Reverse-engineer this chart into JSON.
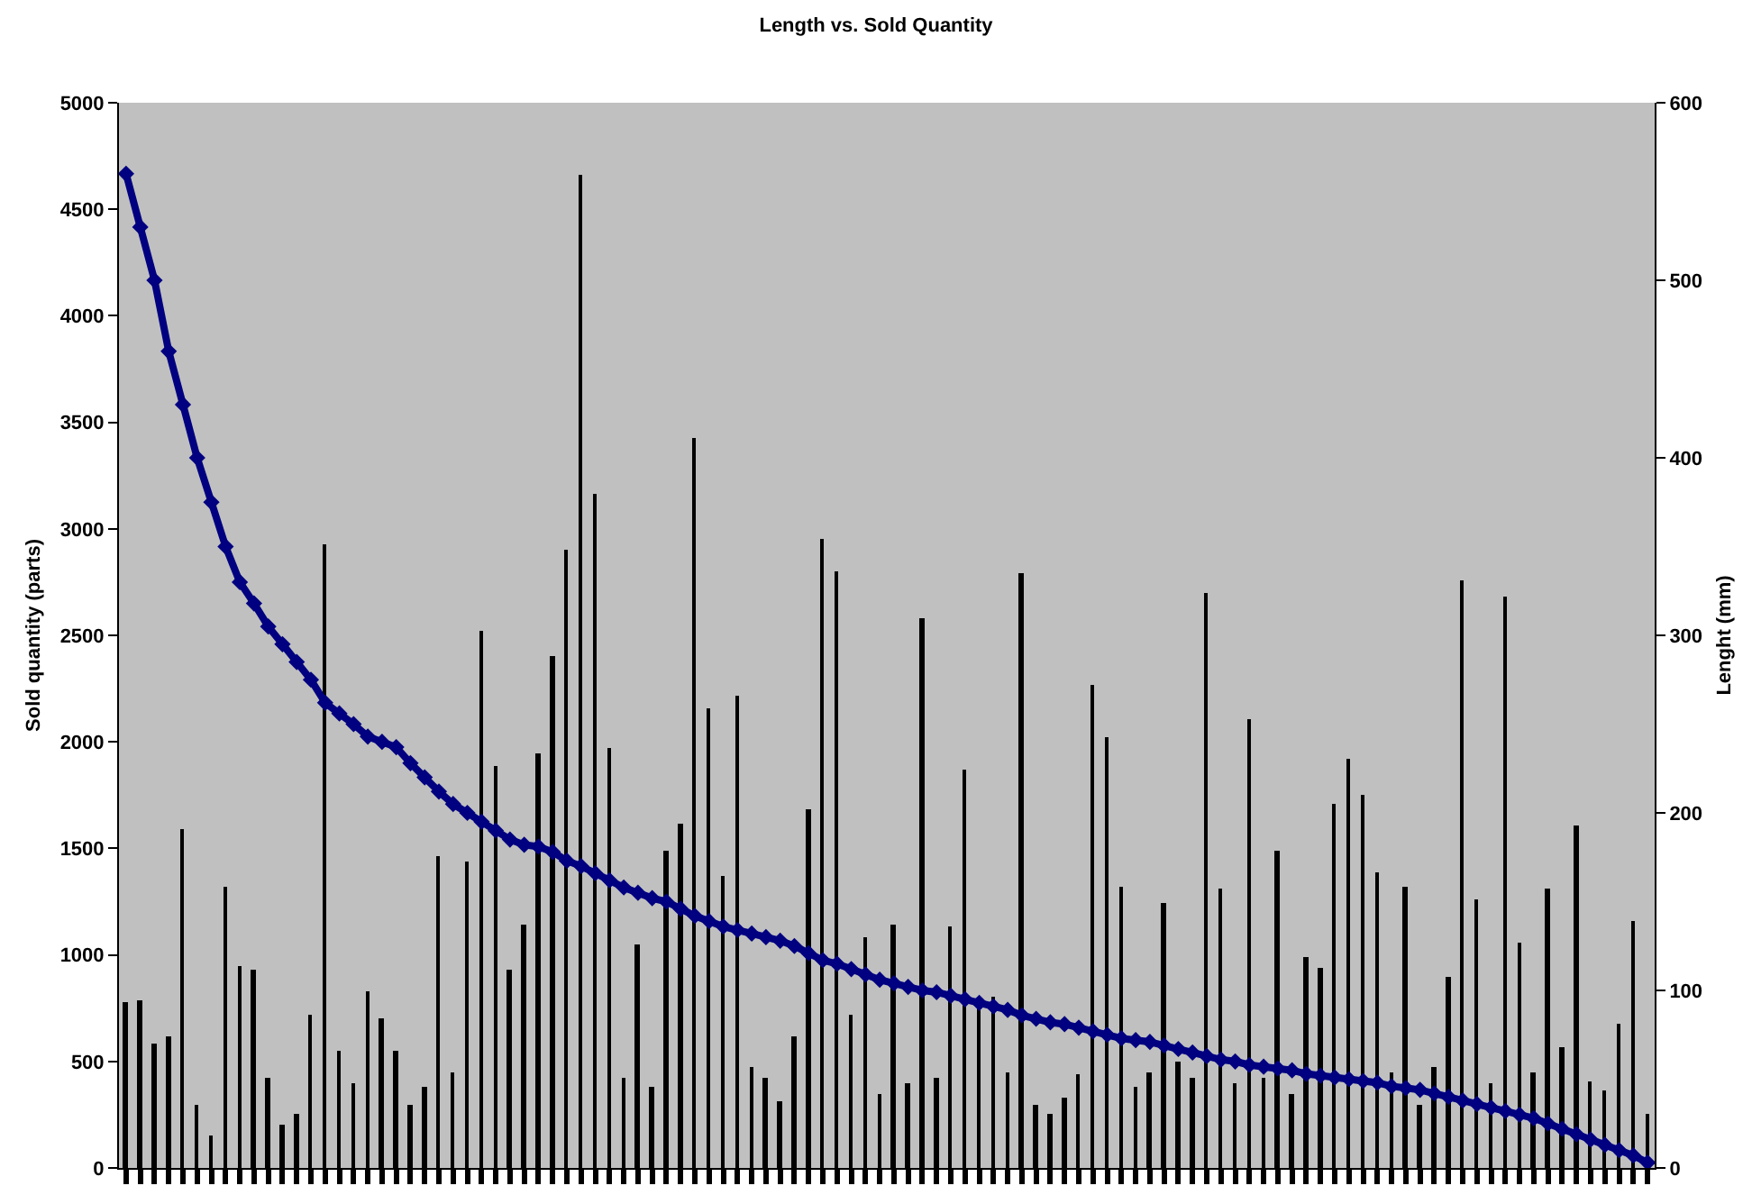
{
  "chart_data": {
    "type": "bar",
    "title": "Length vs. Sold Quantity",
    "ylabel": "Sold quantity (parts)",
    "y2label": "Lenght (mm)",
    "categories": [
      null,
      null,
      null,
      null,
      null,
      null,
      null,
      null,
      null,
      null,
      null,
      null,
      null,
      null,
      null,
      null,
      null,
      null,
      null,
      null,
      null,
      null,
      null,
      null,
      null,
      null,
      null,
      null,
      null,
      null,
      null,
      null,
      null,
      null,
      null,
      null,
      null,
      null,
      null,
      null,
      null,
      null,
      null,
      null,
      null,
      null,
      null,
      null,
      null,
      null,
      null,
      null,
      null,
      null,
      null,
      null,
      null,
      null,
      null,
      null,
      null,
      null,
      null,
      null,
      null,
      null,
      null,
      null,
      null,
      null,
      null,
      null,
      null,
      null,
      null,
      null,
      null,
      null,
      null,
      null,
      null,
      null,
      null,
      null,
      null,
      null,
      null,
      null,
      null,
      null,
      null,
      null,
      null,
      null,
      null,
      null,
      null,
      null,
      null,
      null,
      null,
      null,
      null,
      null,
      null,
      null,
      null,
      null
    ],
    "series": [
      {
        "color": "#000000",
        "values": [
          780,
          790,
          580,
          620,
          1590,
          300,
          150,
          1320,
          950,
          930,
          420,
          200,
          250,
          720,
          2930,
          550,
          400,
          830,
          700,
          550,
          300,
          380,
          1460,
          450,
          1440,
          2520,
          1890,
          930,
          1140,
          1950,
          2400,
          2900,
          4660,
          3160,
          1970,
          420,
          1050,
          380,
          1490,
          1620,
          3430,
          2160,
          1370,
          2220,
          470,
          420,
          310,
          620,
          1680,
          2950,
          2800,
          720,
          1080,
          350,
          1140,
          400,
          2580,
          420,
          1130,
          1870,
          760,
          800,
          450,
          2790,
          300,
          250,
          330,
          440,
          2270,
          2020,
          1320,
          380,
          450,
          1240,
          500,
          420,
          2700,
          1310,
          400,
          2110,
          420,
          1490,
          350,
          990,
          940,
          1710,
          1920,
          1750,
          1390,
          450,
          1320,
          300,
          470,
          900,
          2760,
          1260,
          400,
          2680,
          1060,
          450,
          1310,
          570,
          1610,
          410,
          360,
          680,
          1160,
          250
        ]
      },
      {
        "type": "line",
        "axis": "y2",
        "color": "#000080",
        "marker": "diamond",
        "line_style": "solid",
        "values": [
          560,
          530,
          500,
          460,
          430,
          400,
          375,
          350,
          330,
          318,
          305,
          295,
          285,
          275,
          262,
          256,
          250,
          243,
          240,
          237,
          228,
          220,
          212,
          205,
          200,
          195,
          190,
          185,
          182,
          181,
          178,
          173,
          170,
          166,
          162,
          158,
          155,
          152,
          150,
          146,
          142,
          139,
          136,
          134,
          132,
          130,
          128,
          125,
          121,
          117,
          115,
          112,
          109,
          106,
          104,
          102,
          100,
          99,
          97,
          95,
          93,
          91,
          89,
          86,
          84,
          82,
          81,
          79,
          77,
          75,
          73,
          72,
          71,
          69,
          67,
          65,
          63,
          61,
          60,
          58,
          57,
          56,
          55,
          53,
          52,
          51,
          50,
          49,
          48,
          46,
          45,
          44,
          42,
          40,
          38,
          36,
          34,
          32,
          30,
          28,
          25,
          22,
          19,
          16,
          13,
          10,
          7,
          3
        ]
      }
    ],
    "ylim": [
      0,
      5000
    ],
    "yticks": [
      0,
      500,
      1000,
      1500,
      2000,
      2500,
      3000,
      3500,
      4000,
      4500,
      5000
    ],
    "y2lim": [
      0,
      600
    ],
    "y2ticks": [
      0,
      100,
      200,
      300,
      400,
      500,
      600
    ],
    "grid": false
  }
}
